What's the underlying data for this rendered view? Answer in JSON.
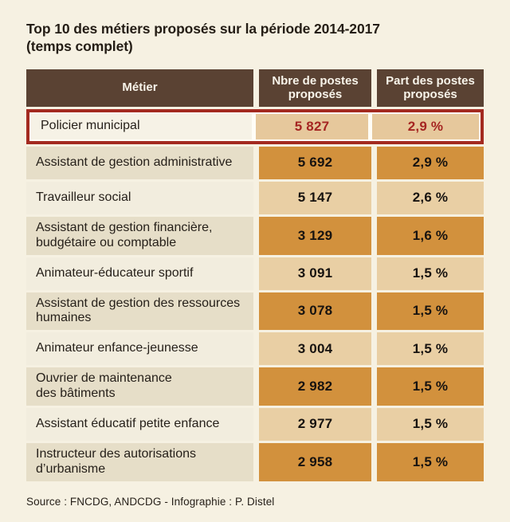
{
  "title": {
    "line1": "Top 10 des métiers proposés sur la période 2014-2017",
    "line2": "(temps complet)"
  },
  "table": {
    "headers": [
      "Métier",
      "Nbre de postes\nproposés",
      "Part des postes\nproposés"
    ],
    "rows": [
      {
        "metier": "Policier municipal",
        "postes": "5 827",
        "part": "2,9 %",
        "shade": "light",
        "highlighted": true
      },
      {
        "metier": "Assistant de gestion administrative",
        "postes": "5 692",
        "part": "2,9 %",
        "shade": "dark",
        "highlighted": false
      },
      {
        "metier": "Travailleur social",
        "postes": "5 147",
        "part": "2,6 %",
        "shade": "light",
        "highlighted": false
      },
      {
        "metier": "Assistant de gestion financière,\nbudgétaire ou comptable",
        "postes": "3 129",
        "part": "1,6 %",
        "shade": "dark",
        "highlighted": false
      },
      {
        "metier": "Animateur-éducateur sportif",
        "postes": "3 091",
        "part": "1,5 %",
        "shade": "light",
        "highlighted": false
      },
      {
        "metier": "Assistant de gestion des ressources\nhumaines",
        "postes": "3 078",
        "part": "1,5 %",
        "shade": "dark",
        "highlighted": false
      },
      {
        "metier": "Animateur enfance-jeunesse",
        "postes": "3 004",
        "part": "1,5 %",
        "shade": "light",
        "highlighted": false
      },
      {
        "metier": "Ouvrier de maintenance\ndes bâtiments",
        "postes": "2 982",
        "part": "1,5 %",
        "shade": "dark",
        "highlighted": false
      },
      {
        "metier": "Assistant éducatif petite enfance",
        "postes": "2 977",
        "part": "1,5 %",
        "shade": "light",
        "highlighted": false
      },
      {
        "metier": "Instructeur des autorisations\nd’urbanisme",
        "postes": "2 958",
        "part": "1,5 %",
        "shade": "dark",
        "highlighted": false
      }
    ]
  },
  "footer": {
    "source": "Source : FNCDG, ANDCDG - Infographie : P. Distel"
  },
  "colors": {
    "page_bg": "#f6f1e2",
    "header_bg": "#5a4233",
    "header_text": "#f8f4ea",
    "label_light": "#f2edde",
    "label_dark": "#e6dec8",
    "num_light": "#e9cfa4",
    "num_dark": "#d2913d",
    "hl_label": "#f6f2e6",
    "hl_num": "#e6c89c",
    "hl_border": "#a32a20",
    "hl_text": "#a52522",
    "text_dark": "#26201a",
    "num_text": "#171310"
  },
  "chart_data": {
    "type": "table",
    "title": "Top 10 des métiers proposés sur la période 2014-2017 (temps complet)",
    "columns": [
      "Métier",
      "Nbre de postes proposés",
      "Part des postes proposés"
    ],
    "rows": [
      [
        "Policier municipal",
        5827,
        "2,9 %"
      ],
      [
        "Assistant de gestion administrative",
        5692,
        "2,9 %"
      ],
      [
        "Travailleur social",
        5147,
        "2,6 %"
      ],
      [
        "Assistant de gestion financière, budgétaire ou comptable",
        3129,
        "1,6 %"
      ],
      [
        "Animateur-éducateur sportif",
        3091,
        "1,5 %"
      ],
      [
        "Assistant de gestion des ressources humaines",
        3078,
        "1,5 %"
      ],
      [
        "Animateur enfance-jeunesse",
        3004,
        "1,5 %"
      ],
      [
        "Ouvrier de maintenance des bâtiments",
        2982,
        "1,5 %"
      ],
      [
        "Assistant éducatif petite enfance",
        2977,
        "1,5 %"
      ],
      [
        "Instructeur des autorisations d’urbanisme",
        2958,
        "1,5 %"
      ]
    ],
    "highlighted_row": "Policier municipal",
    "source": "Source : FNCDG, ANDCDG - Infographie : P. Distel"
  }
}
